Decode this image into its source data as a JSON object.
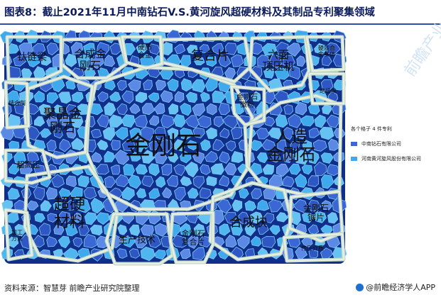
{
  "header": {
    "title": "图表8：截止2021年11月中南钻石V.S.黄河旋风超硬材料及其制品专利聚集领域"
  },
  "footer": {
    "source": "资料来源：智慧芽 前瞻产业研究院整理",
    "brand": "@前瞻经济学人APP"
  },
  "watermark": "前瞻产业",
  "legend": {
    "title": "各个格子 4 件专利",
    "items": [
      {
        "label": "中南钻石有限公司",
        "color": "#3b67d4"
      },
      {
        "label": "河南黄河旋风股份有限公司",
        "color": "#3ea9ec"
      }
    ]
  },
  "colors": {
    "stroke": "#e6efe6",
    "outline": "#c3d7c3",
    "bg": "#0f2f8a",
    "cell": [
      "#3b67d4",
      "#3ea9ec",
      "#4fb6f0",
      "#5c88e6",
      "#2f57c4",
      "#66c2f2"
    ]
  },
  "chart_data": {
    "type": "treemap",
    "title": "",
    "cell_unit": "各个格子 4 件专利",
    "series": [
      {
        "name": "中南钻石有限公司",
        "color": "#3b67d4"
      },
      {
        "name": "河南黄河旋风股份有限公司",
        "color": "#3ea9ec"
      }
    ],
    "regions": [
      {
        "label": "金刚石",
        "relative_size": 22
      },
      {
        "label": "超硬材料",
        "relative_size": 10
      },
      {
        "label": "人造金刚石",
        "relative_size": 9
      },
      {
        "label": "聚晶金刚石",
        "relative_size": 7
      },
      {
        "label": "合成块",
        "relative_size": 7
      },
      {
        "label": "复合片",
        "relative_size": 6
      },
      {
        "label": "六面顶压机",
        "relative_size": 5
      },
      {
        "label": "合成金刚石",
        "relative_size": 4
      },
      {
        "label": "金刚石锯片",
        "relative_size": 4
      },
      {
        "label": "生产技术",
        "relative_size": 4
      },
      {
        "label": "金刚石复合片",
        "relative_size": 4
      },
      {
        "label": "钛链梁",
        "relative_size": 3
      },
      {
        "label": "硬质合金",
        "relative_size": 3
      },
      {
        "label": "超高压",
        "relative_size": 3
      },
      {
        "label": "金刚石微粉",
        "relative_size": 2
      },
      {
        "label": "硬质合金基体",
        "relative_size": 2
      },
      {
        "label": "结合剂",
        "relative_size": 2
      },
      {
        "label": "绝缘块",
        "relative_size": 2
      },
      {
        "label": "加工方法",
        "relative_size": 2
      },
      {
        "label": "传压介质",
        "relative_size": 2
      }
    ]
  }
}
